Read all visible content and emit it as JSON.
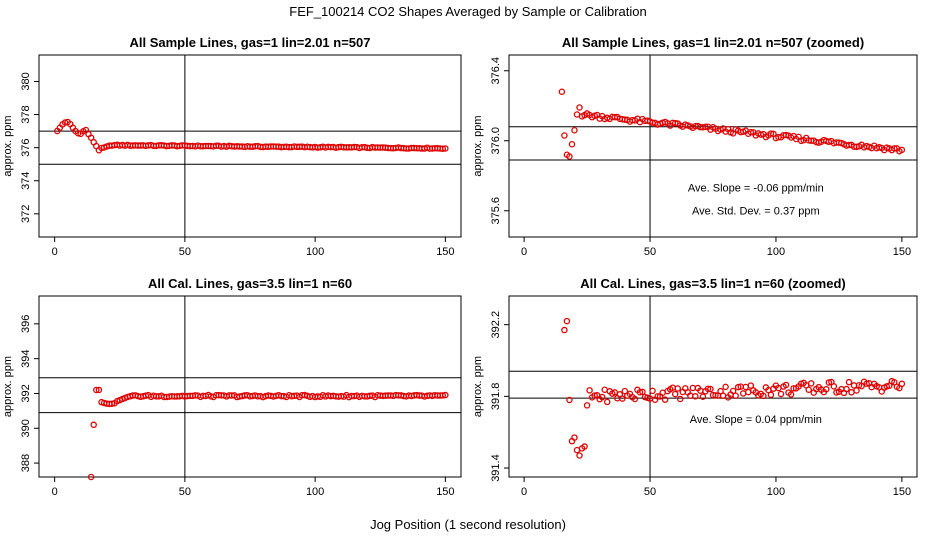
{
  "page": {
    "title": "FEF_100214  CO2 Shapes Averaged by Sample or Calibration",
    "xlabel": "Jog Position (1 second resolution)"
  },
  "colors": {
    "points": "#e00000",
    "lines": "#000000"
  },
  "chart_data": [
    {
      "type": "scatter",
      "title": "All Sample Lines, gas=1 lin=2.01 n=507",
      "ylabel": "approx. ppm",
      "xlim": [
        -6,
        156
      ],
      "ylim": [
        370.6,
        381.6
      ],
      "xticks": [
        0,
        50,
        100,
        150
      ],
      "xtick_labels": [
        "0",
        "50",
        "100",
        "150"
      ],
      "yticks": [
        372,
        374,
        376,
        378,
        380
      ],
      "ytick_labels": [
        "372",
        "374",
        "376",
        "378",
        "380"
      ],
      "hlines": [
        377.0,
        375.0
      ],
      "vlines": [
        50
      ],
      "annotations": [],
      "series": [
        {
          "shape": "sample_full",
          "x_start": 1,
          "x_end": 150
        }
      ]
    },
    {
      "type": "scatter",
      "title": "All Sample Lines, gas=1 lin=2.01 n=507 (zoomed)",
      "ylabel": "approx. ppm",
      "xlim": [
        -6,
        156
      ],
      "ylim": [
        375.45,
        376.49
      ],
      "xticks": [
        0,
        50,
        100,
        150
      ],
      "xtick_labels": [
        "0",
        "50",
        "100",
        "150"
      ],
      "yticks": [
        375.6,
        376.0,
        376.4
      ],
      "ytick_labels": [
        "375.6",
        "376.0",
        "376.4"
      ],
      "hlines": [
        376.08,
        375.89
      ],
      "vlines": [
        50
      ],
      "annotations": [
        {
          "text": "Ave. Slope =  -0.06  ppm/min",
          "x": 92,
          "y": 375.71
        },
        {
          "text": "Ave. Std. Dev. =  0.37  ppm",
          "x": 92,
          "y": 375.58
        }
      ],
      "series": [
        {
          "shape": "sample_zoom",
          "x_start": 15,
          "x_end": 150
        }
      ]
    },
    {
      "type": "scatter",
      "title": "All Cal. Lines, gas=3.5 lin=1 n=60",
      "ylabel": "approx. ppm",
      "xlim": [
        -6,
        156
      ],
      "ylim": [
        387.2,
        397.6
      ],
      "xticks": [
        0,
        50,
        100,
        150
      ],
      "xtick_labels": [
        "0",
        "50",
        "100",
        "150"
      ],
      "yticks": [
        388,
        390,
        392,
        394,
        396
      ],
      "ytick_labels": [
        "388",
        "390",
        "392",
        "394",
        "396"
      ],
      "hlines": [
        392.9,
        390.9
      ],
      "vlines": [
        50
      ],
      "annotations": [],
      "series": [
        {
          "shape": "cal_full",
          "x_start": 14,
          "x_end": 150
        }
      ]
    },
    {
      "type": "scatter",
      "title": "All Cal. Lines, gas=3.5 lin=1 n=60 (zoomed)",
      "ylabel": "approx. ppm",
      "xlim": [
        -6,
        156
      ],
      "ylim": [
        391.35,
        392.36
      ],
      "xticks": [
        0,
        50,
        100,
        150
      ],
      "xtick_labels": [
        "0",
        "50",
        "100",
        "150"
      ],
      "yticks": [
        391.4,
        391.8,
        392.2
      ],
      "ytick_labels": [
        "391.4",
        "391.8",
        "392.2"
      ],
      "hlines": [
        391.94,
        391.79
      ],
      "vlines": [
        50
      ],
      "annotations": [
        {
          "text": "Ave. Slope =  0.04  ppm/min",
          "x": 92,
          "y": 391.65
        }
      ],
      "series": [
        {
          "shape": "cal_zoom",
          "x_start": 16,
          "x_end": 150
        }
      ]
    }
  ]
}
